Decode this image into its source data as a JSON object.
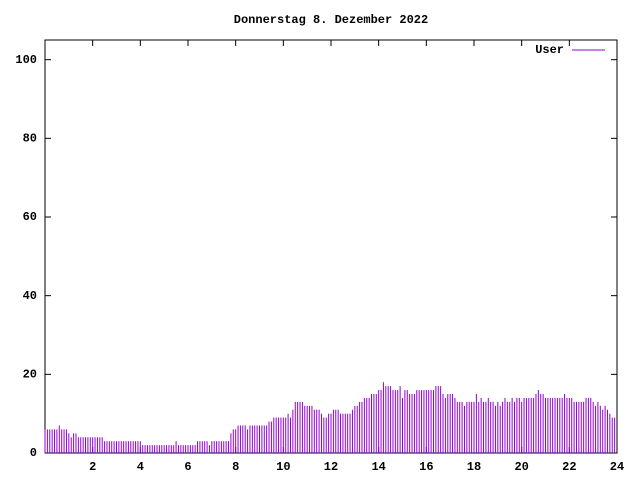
{
  "chart_data": {
    "type": "impulse",
    "title": "Donnerstag 8. Dezember 2022",
    "x": [
      0.0,
      0.1,
      0.2,
      0.3,
      0.4,
      0.5,
      0.6,
      0.7,
      0.8,
      0.9,
      1.0,
      1.1,
      1.2,
      1.3,
      1.4,
      1.5,
      1.6,
      1.7,
      1.8,
      1.9,
      2.0,
      2.1,
      2.2,
      2.3,
      2.4,
      2.5,
      2.6,
      2.7,
      2.8,
      2.9,
      3.0,
      3.1,
      3.2,
      3.3,
      3.4,
      3.5,
      3.6,
      3.7,
      3.8,
      3.9,
      4.0,
      4.1,
      4.2,
      4.3,
      4.4,
      4.5,
      4.6,
      4.7,
      4.8,
      4.9,
      5.0,
      5.1,
      5.2,
      5.3,
      5.4,
      5.5,
      5.6,
      5.7,
      5.8,
      5.9,
      6.0,
      6.1,
      6.2,
      6.3,
      6.4,
      6.5,
      6.6,
      6.7,
      6.8,
      6.9,
      7.0,
      7.1,
      7.2,
      7.3,
      7.4,
      7.5,
      7.6,
      7.7,
      7.8,
      7.9,
      8.0,
      8.1,
      8.2,
      8.3,
      8.4,
      8.5,
      8.6,
      8.7,
      8.8,
      8.9,
      9.0,
      9.1,
      9.2,
      9.3,
      9.4,
      9.5,
      9.6,
      9.7,
      9.8,
      9.9,
      10.0,
      10.1,
      10.2,
      10.3,
      10.4,
      10.5,
      10.6,
      10.7,
      10.8,
      10.9,
      11.0,
      11.1,
      11.2,
      11.3,
      11.4,
      11.5,
      11.6,
      11.7,
      11.8,
      11.9,
      12.0,
      12.1,
      12.2,
      12.3,
      12.4,
      12.5,
      12.6,
      12.7,
      12.8,
      12.9,
      13.0,
      13.1,
      13.2,
      13.3,
      13.4,
      13.5,
      13.6,
      13.7,
      13.8,
      13.9,
      14.0,
      14.1,
      14.2,
      14.3,
      14.4,
      14.5,
      14.6,
      14.7,
      14.8,
      14.9,
      15.0,
      15.1,
      15.2,
      15.3,
      15.4,
      15.5,
      15.6,
      15.7,
      15.8,
      15.9,
      16.0,
      16.1,
      16.2,
      16.3,
      16.4,
      16.5,
      16.6,
      16.7,
      16.8,
      16.9,
      17.0,
      17.1,
      17.2,
      17.3,
      17.4,
      17.5,
      17.6,
      17.7,
      17.8,
      17.9,
      18.0,
      18.1,
      18.2,
      18.3,
      18.4,
      18.5,
      18.6,
      18.7,
      18.8,
      18.9,
      19.0,
      19.1,
      19.2,
      19.3,
      19.4,
      19.5,
      19.6,
      19.7,
      19.8,
      19.9,
      20.0,
      20.1,
      20.2,
      20.3,
      20.4,
      20.5,
      20.6,
      20.7,
      20.8,
      20.9,
      21.0,
      21.1,
      21.2,
      21.3,
      21.4,
      21.5,
      21.6,
      21.7,
      21.8,
      21.9,
      22.0,
      22.1,
      22.2,
      22.3,
      22.4,
      22.5,
      22.6,
      22.7,
      22.8,
      22.9,
      23.0,
      23.1,
      23.2,
      23.3,
      23.4,
      23.5,
      23.6,
      23.7,
      23.8,
      23.9
    ],
    "series": [
      {
        "name": "User",
        "color": "#9400d3",
        "values": [
          6,
          6,
          6,
          6,
          6,
          6,
          7,
          6,
          6,
          6,
          5,
          4,
          5,
          5,
          4,
          4,
          4,
          4,
          4,
          4,
          4,
          4,
          4,
          4,
          4,
          3,
          3,
          3,
          3,
          3,
          3,
          3,
          3,
          3,
          3,
          3,
          3,
          3,
          3,
          3,
          3,
          2,
          2,
          2,
          2,
          2,
          2,
          2,
          2,
          2,
          2,
          2,
          2,
          2,
          2,
          3,
          2,
          2,
          2,
          2,
          2,
          2,
          2,
          2,
          3,
          3,
          3,
          3,
          3,
          2,
          3,
          3,
          3,
          3,
          3,
          3,
          3,
          3,
          5,
          6,
          6,
          7,
          7,
          7,
          7,
          6,
          7,
          7,
          7,
          7,
          7,
          7,
          7,
          7,
          8,
          8,
          9,
          9,
          9,
          9,
          9,
          9,
          10,
          9,
          11,
          13,
          13,
          13,
          13,
          12,
          12,
          12,
          12,
          11,
          11,
          11,
          10,
          9,
          9,
          10,
          10,
          11,
          11,
          11,
          10,
          10,
          10,
          10,
          10,
          11,
          12,
          12,
          13,
          13,
          14,
          14,
          14,
          15,
          15,
          15,
          16,
          16,
          18,
          17,
          17,
          17,
          16,
          16,
          16,
          17,
          14,
          16,
          16,
          15,
          15,
          15,
          16,
          16,
          16,
          16,
          16,
          16,
          16,
          16,
          17,
          17,
          17,
          15,
          14,
          15,
          15,
          15,
          14,
          13,
          13,
          13,
          12,
          13,
          13,
          13,
          13,
          15,
          13,
          14,
          13,
          13,
          14,
          13,
          13,
          12,
          13,
          12,
          13,
          14,
          13,
          13,
          14,
          13,
          14,
          14,
          13,
          14,
          14,
          14,
          14,
          14,
          15,
          16,
          15,
          15,
          14,
          14,
          14,
          14,
          14,
          14,
          14,
          14,
          15,
          14,
          14,
          14,
          13,
          13,
          13,
          13,
          13,
          14,
          14,
          14,
          13,
          12,
          13,
          12,
          11,
          12,
          11,
          10,
          9,
          9
        ]
      }
    ],
    "xlim": [
      0,
      24
    ],
    "xticks": [
      2,
      4,
      6,
      8,
      10,
      12,
      14,
      16,
      18,
      20,
      22,
      24
    ],
    "ylim": [
      0,
      105
    ],
    "yticks": [
      0,
      20,
      40,
      60,
      80,
      100
    ],
    "legend": "upper right"
  }
}
